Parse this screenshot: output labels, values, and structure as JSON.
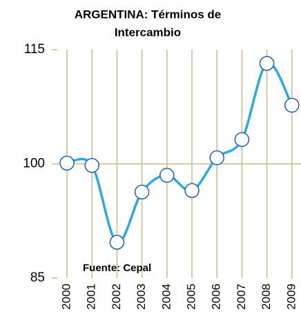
{
  "chart_data": {
    "type": "line",
    "title": [
      "ARGENTINA:  Términos de",
      "Intercambio"
    ],
    "annotation": "Fuente: Cepal",
    "categories": [
      "2000",
      "2001",
      "2002",
      "2003",
      "2004",
      "2005",
      "2006",
      "2007",
      "2008",
      "2009"
    ],
    "series": [
      {
        "name": "Términos de Intercambio",
        "color": "#29a9e1",
        "marker_edge": "#1f5fa8",
        "values": [
          100.1,
          99.8,
          89.7,
          96.3,
          98.5,
          96.5,
          100.8,
          103.2,
          113.2,
          107.7
        ]
      }
    ],
    "ylim": [
      85,
      115
    ],
    "yticks": [
      85,
      100,
      115
    ],
    "grid_color": "#c8b88a"
  }
}
